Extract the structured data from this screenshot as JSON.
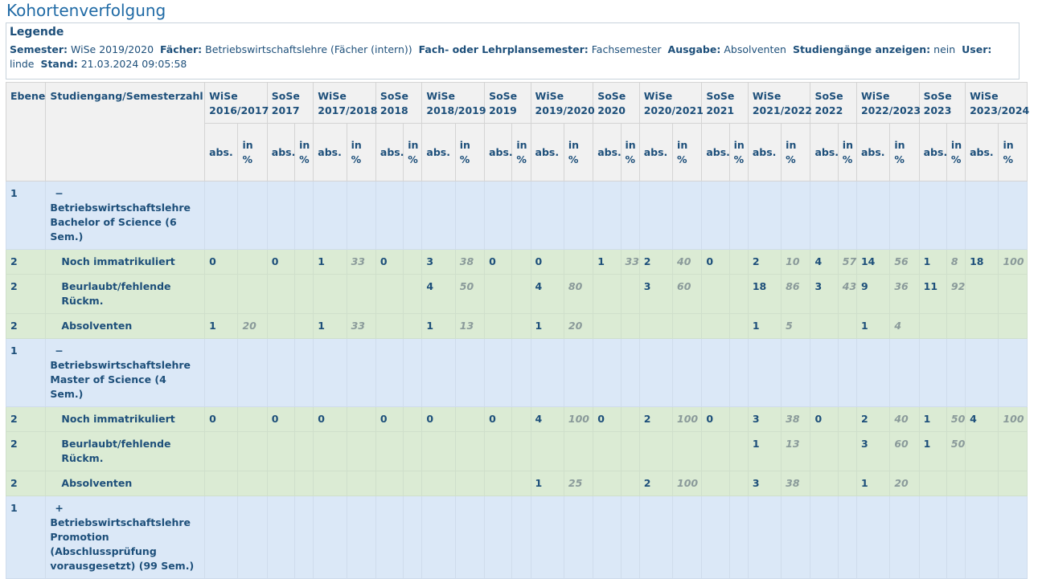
{
  "page_title": "Kohortenverfolgung",
  "legend": {
    "heading": "Legende",
    "semester_label": "Semester:",
    "semester_value": "WiSe 2019/2020",
    "faecher_label": "Fächer:",
    "faecher_value": "Betriebswirtschaftslehre (Fächer (intern))",
    "fach_label": "Fach- oder Lehrplansemester:",
    "fach_value": "Fachsemester",
    "ausgabe_label": "Ausgabe:",
    "ausgabe_value": "Absolventen",
    "studiengaenge_label": "Studiengänge anzeigen:",
    "studiengaenge_value": "nein",
    "user_label": "User:",
    "user_value": "linde",
    "stand_label": "Stand:",
    "stand_value": "21.03.2024 09:05:58"
  },
  "table": {
    "col_ebene": "Ebene",
    "col_studiengang": "Studiengang/Semesterzahl",
    "semesters": [
      "WiSe 2016/2017",
      "SoSe 2017",
      "WiSe 2017/2018",
      "SoSe 2018",
      "WiSe 2018/2019",
      "SoSe 2019",
      "WiSe 2019/2020",
      "SoSe 2020",
      "WiSe 2020/2021",
      "SoSe 2021",
      "WiSe 2021/2022",
      "SoSe 2022",
      "WiSe 2022/2023",
      "SoSe 2023",
      "WiSe 2023/2024"
    ],
    "sub_abs": "abs.",
    "sub_pct": "in %",
    "rows": [
      {
        "level": "1",
        "toggle": "−",
        "name": "Betriebswirtschaftslehre Bachelor of Science (6 Sem.)",
        "cells": []
      },
      {
        "level": "2",
        "name": "Noch immatrikuliert",
        "cells": [
          [
            "0",
            ""
          ],
          [
            "0",
            ""
          ],
          [
            "1",
            "33"
          ],
          [
            "0",
            ""
          ],
          [
            "3",
            "38"
          ],
          [
            "0",
            ""
          ],
          [
            "0",
            ""
          ],
          [
            "1",
            "33"
          ],
          [
            "2",
            "40"
          ],
          [
            "0",
            ""
          ],
          [
            "2",
            "10"
          ],
          [
            "4",
            "57"
          ],
          [
            "14",
            "56"
          ],
          [
            "1",
            "8"
          ],
          [
            "18",
            "100"
          ]
        ]
      },
      {
        "level": "2",
        "name": "Beurlaubt/fehlende Rückm.",
        "cells": [
          [
            "",
            ""
          ],
          [
            "",
            ""
          ],
          [
            "",
            ""
          ],
          [
            "",
            ""
          ],
          [
            "4",
            "50"
          ],
          [
            "",
            ""
          ],
          [
            "4",
            "80"
          ],
          [
            "",
            ""
          ],
          [
            "3",
            "60"
          ],
          [
            "",
            ""
          ],
          [
            "18",
            "86"
          ],
          [
            "3",
            "43"
          ],
          [
            "9",
            "36"
          ],
          [
            "11",
            "92"
          ],
          [
            "",
            ""
          ]
        ]
      },
      {
        "level": "2",
        "name": "Absolventen",
        "cells": [
          [
            "1",
            "20"
          ],
          [
            "",
            ""
          ],
          [
            "1",
            "33"
          ],
          [
            "",
            ""
          ],
          [
            "1",
            "13"
          ],
          [
            "",
            ""
          ],
          [
            "1",
            "20"
          ],
          [
            "",
            ""
          ],
          [
            "",
            ""
          ],
          [
            "",
            ""
          ],
          [
            "1",
            "5"
          ],
          [
            "",
            ""
          ],
          [
            "1",
            "4"
          ],
          [
            "",
            ""
          ],
          [
            "",
            ""
          ]
        ]
      },
      {
        "level": "1",
        "toggle": "−",
        "name": "Betriebswirtschaftslehre Master of Science (4 Sem.)",
        "cells": []
      },
      {
        "level": "2",
        "name": "Noch immatrikuliert",
        "cells": [
          [
            "0",
            ""
          ],
          [
            "0",
            ""
          ],
          [
            "0",
            ""
          ],
          [
            "0",
            ""
          ],
          [
            "0",
            ""
          ],
          [
            "0",
            ""
          ],
          [
            "4",
            "100"
          ],
          [
            "0",
            ""
          ],
          [
            "2",
            "100"
          ],
          [
            "0",
            ""
          ],
          [
            "3",
            "38"
          ],
          [
            "0",
            ""
          ],
          [
            "2",
            "40"
          ],
          [
            "1",
            "50"
          ],
          [
            "4",
            "100"
          ]
        ]
      },
      {
        "level": "2",
        "name": "Beurlaubt/fehlende Rückm.",
        "cells": [
          [
            "",
            ""
          ],
          [
            "",
            ""
          ],
          [
            "",
            ""
          ],
          [
            "",
            ""
          ],
          [
            "",
            ""
          ],
          [
            "",
            ""
          ],
          [
            "",
            ""
          ],
          [
            "",
            ""
          ],
          [
            "",
            ""
          ],
          [
            "",
            ""
          ],
          [
            "1",
            "13"
          ],
          [
            "",
            ""
          ],
          [
            "3",
            "60"
          ],
          [
            "1",
            "50"
          ],
          [
            "",
            ""
          ]
        ]
      },
      {
        "level": "2",
        "name": "Absolventen",
        "cells": [
          [
            "",
            ""
          ],
          [
            "",
            ""
          ],
          [
            "",
            ""
          ],
          [
            "",
            ""
          ],
          [
            "",
            ""
          ],
          [
            "",
            ""
          ],
          [
            "1",
            "25"
          ],
          [
            "",
            ""
          ],
          [
            "2",
            "100"
          ],
          [
            "",
            ""
          ],
          [
            "3",
            "38"
          ],
          [
            "",
            ""
          ],
          [
            "1",
            "20"
          ],
          [
            "",
            ""
          ],
          [
            "",
            ""
          ]
        ]
      },
      {
        "level": "1",
        "toggle": "+",
        "name": "Betriebswirtschaftslehre Promotion (Abschlussprüfung vorausgesetzt) (99 Sem.)",
        "cells": []
      }
    ]
  }
}
